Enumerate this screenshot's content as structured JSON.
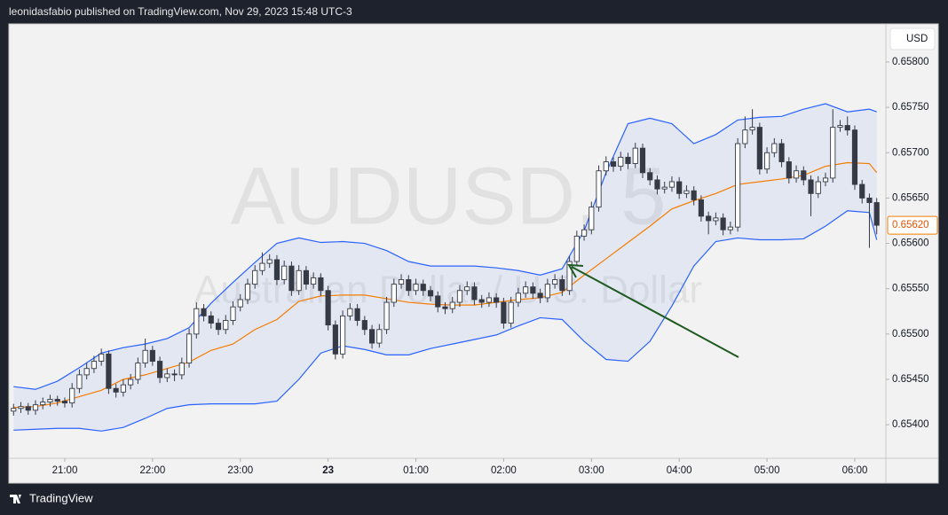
{
  "header": {
    "title": "leonidasfabio published on TradingView.com, Nov 29, 2023 15:48 UTC-3"
  },
  "footer": {
    "brand": "TradingView"
  },
  "chart_data": {
    "type": "candlestick",
    "watermark": "AUDUSD, 5",
    "subtitle": "Australian Dollar / U.S. Dollar",
    "currency": "USD",
    "last_price": {
      "value": 0.6562,
      "label": "0.65620"
    },
    "up_color": "#ffffff",
    "down_color": "#363a45",
    "grid": false,
    "xlim": [
      -0.64,
      119.25
    ],
    "xticks": [
      {
        "value": 7,
        "label": "21:00"
      },
      {
        "value": 19,
        "label": "22:00"
      },
      {
        "value": 31,
        "label": "23:00"
      },
      {
        "value": 43,
        "label": "23"
      },
      {
        "value": 55,
        "label": "01:00"
      },
      {
        "value": 67,
        "label": "02:00"
      },
      {
        "value": 79,
        "label": "03:00"
      },
      {
        "value": 91,
        "label": "04:00"
      },
      {
        "value": 103,
        "label": "05:00"
      },
      {
        "value": 115,
        "label": "06:00"
      }
    ],
    "ylim": [
      0.65363,
      0.65842
    ],
    "yticks": [
      {
        "value": 0.654,
        "label": "0.65400"
      },
      {
        "value": 0.6545,
        "label": "0.65450"
      },
      {
        "value": 0.655,
        "label": "0.65500"
      },
      {
        "value": 0.6555,
        "label": "0.65550"
      },
      {
        "value": 0.656,
        "label": "0.65600"
      },
      {
        "value": 0.6565,
        "label": "0.65650"
      },
      {
        "value": 0.657,
        "label": "0.65700"
      },
      {
        "value": 0.6575,
        "label": "0.65750"
      },
      {
        "value": 0.658,
        "label": "0.65800"
      }
    ],
    "open": [
      0.65415,
      0.65418,
      0.6542,
      0.65416,
      0.65422,
      0.65425,
      0.65428,
      0.65426,
      0.65424,
      0.6544,
      0.65455,
      0.65462,
      0.6547,
      0.65478,
      0.6544,
      0.65436,
      0.65444,
      0.6545,
      0.65468,
      0.65482,
      0.6547,
      0.65452,
      0.65456,
      0.65455,
      0.65468,
      0.655,
      0.65528,
      0.6552,
      0.65512,
      0.65505,
      0.65515,
      0.6553,
      0.65538,
      0.65555,
      0.6557,
      0.65578,
      0.65582,
      0.6556,
      0.65575,
      0.65548,
      0.6557,
      0.65555,
      0.65562,
      0.65548,
      0.6551,
      0.65478,
      0.6552,
      0.65528,
      0.65515,
      0.65505,
      0.6549,
      0.65505,
      0.65535,
      0.65555,
      0.6556,
      0.65548,
      0.65555,
      0.65548,
      0.65542,
      0.6553,
      0.65528,
      0.65535,
      0.65548,
      0.65552,
      0.65538,
      0.65535,
      0.6554,
      0.65535,
      0.65512,
      0.65535,
      0.65545,
      0.65552,
      0.65545,
      0.6554,
      0.65555,
      0.6556,
      0.65548,
      0.6558,
      0.65608,
      0.65615,
      0.6564,
      0.6568,
      0.6569,
      0.65685,
      0.65695,
      0.65688,
      0.65705,
      0.65678,
      0.6567,
      0.6566,
      0.65662,
      0.65668,
      0.65655,
      0.65658,
      0.65648,
      0.6563,
      0.65625,
      0.65628,
      0.65615,
      0.65618,
      0.6571,
      0.65725,
      0.65728,
      0.65682,
      0.657,
      0.6571,
      0.6569,
      0.65672,
      0.6568,
      0.6567,
      0.65655,
      0.65668,
      0.65672,
      0.65728,
      0.6573,
      0.65725,
      0.65665,
      0.6565,
      0.65645
    ],
    "high": [
      0.65423,
      0.65425,
      0.65424,
      0.65427,
      0.6543,
      0.65433,
      0.65432,
      0.6543,
      0.65446,
      0.65461,
      0.65468,
      0.65476,
      0.65484,
      0.65482,
      0.65445,
      0.6545,
      0.65456,
      0.65474,
      0.65495,
      0.65487,
      0.65475,
      0.65462,
      0.65461,
      0.65474,
      0.65506,
      0.65535,
      0.65533,
      0.65525,
      0.65517,
      0.65521,
      0.65536,
      0.65544,
      0.65561,
      0.65576,
      0.6559,
      0.65588,
      0.65587,
      0.65581,
      0.6558,
      0.65576,
      0.65575,
      0.65568,
      0.65567,
      0.65553,
      0.65515,
      0.65526,
      0.65534,
      0.65533,
      0.6552,
      0.6551,
      0.65511,
      0.65541,
      0.65561,
      0.65566,
      0.65565,
      0.65561,
      0.6556,
      0.65553,
      0.65547,
      0.65535,
      0.65541,
      0.65554,
      0.65558,
      0.65557,
      0.65543,
      0.65546,
      0.65545,
      0.6554,
      0.65541,
      0.65551,
      0.65558,
      0.65557,
      0.6555,
      0.65561,
      0.65566,
      0.65565,
      0.65586,
      0.65614,
      0.65621,
      0.65646,
      0.65686,
      0.65696,
      0.65695,
      0.65701,
      0.657,
      0.65711,
      0.6571,
      0.65683,
      0.65675,
      0.65668,
      0.65674,
      0.65673,
      0.65664,
      0.65663,
      0.65653,
      0.65635,
      0.65634,
      0.65633,
      0.65624,
      0.65716,
      0.6574,
      0.65748,
      0.65733,
      0.65706,
      0.65716,
      0.65715,
      0.65695,
      0.65686,
      0.65685,
      0.65675,
      0.65674,
      0.65678,
      0.65748,
      0.65736,
      0.6574,
      0.6573,
      0.6567,
      0.65655,
      0.6565
    ],
    "low": [
      0.6541,
      0.65413,
      0.65411,
      0.65411,
      0.65417,
      0.6542,
      0.65421,
      0.65419,
      0.65419,
      0.65435,
      0.6545,
      0.65457,
      0.65465,
      0.65434,
      0.6543,
      0.65431,
      0.65439,
      0.65445,
      0.65463,
      0.65465,
      0.65446,
      0.65447,
      0.65448,
      0.6545,
      0.65463,
      0.65495,
      0.65514,
      0.65506,
      0.65499,
      0.655,
      0.6551,
      0.65525,
      0.65533,
      0.6555,
      0.65565,
      0.65573,
      0.65554,
      0.65555,
      0.65542,
      0.65543,
      0.65549,
      0.6555,
      0.65542,
      0.65504,
      0.65472,
      0.65473,
      0.65515,
      0.65509,
      0.65499,
      0.65484,
      0.65485,
      0.655,
      0.6553,
      0.6555,
      0.65542,
      0.65543,
      0.65542,
      0.65536,
      0.65524,
      0.65522,
      0.65523,
      0.6553,
      0.65543,
      0.65532,
      0.65529,
      0.6553,
      0.65529,
      0.65506,
      0.65507,
      0.6553,
      0.6554,
      0.65539,
      0.65534,
      0.65535,
      0.6555,
      0.65542,
      0.65543,
      0.65575,
      0.65603,
      0.6561,
      0.65635,
      0.65675,
      0.65679,
      0.6568,
      0.65682,
      0.65683,
      0.65672,
      0.65664,
      0.65654,
      0.65655,
      0.65657,
      0.65649,
      0.6565,
      0.65642,
      0.65624,
      0.6561,
      0.6562,
      0.65609,
      0.6561,
      0.65613,
      0.65705,
      0.6572,
      0.65676,
      0.65677,
      0.65695,
      0.65684,
      0.65666,
      0.65667,
      0.65664,
      0.6563,
      0.6565,
      0.65663,
      0.65667,
      0.65723,
      0.65719,
      0.65659,
      0.65644,
      0.65595,
      0.6561
    ],
    "close": [
      0.65418,
      0.6542,
      0.65416,
      0.65422,
      0.65425,
      0.65428,
      0.65426,
      0.65424,
      0.6544,
      0.65455,
      0.65462,
      0.6547,
      0.65478,
      0.6544,
      0.65436,
      0.65444,
      0.6545,
      0.65468,
      0.65482,
      0.6547,
      0.65452,
      0.65456,
      0.65455,
      0.65468,
      0.655,
      0.65528,
      0.6552,
      0.65512,
      0.65505,
      0.65515,
      0.6553,
      0.65538,
      0.65555,
      0.6557,
      0.65578,
      0.65582,
      0.6556,
      0.65575,
      0.65548,
      0.6557,
      0.65555,
      0.65562,
      0.65548,
      0.6551,
      0.65478,
      0.6552,
      0.65528,
      0.65515,
      0.65505,
      0.6549,
      0.65505,
      0.65535,
      0.65555,
      0.6556,
      0.65548,
      0.65555,
      0.65548,
      0.65542,
      0.6553,
      0.65528,
      0.65535,
      0.65548,
      0.65552,
      0.65538,
      0.65535,
      0.6554,
      0.65535,
      0.65512,
      0.65535,
      0.65545,
      0.65552,
      0.65545,
      0.6554,
      0.65555,
      0.6556,
      0.65548,
      0.6558,
      0.65608,
      0.65615,
      0.6564,
      0.6568,
      0.6569,
      0.65685,
      0.65695,
      0.65688,
      0.65705,
      0.65678,
      0.6567,
      0.6566,
      0.65662,
      0.65668,
      0.65655,
      0.65658,
      0.65648,
      0.6563,
      0.65625,
      0.65628,
      0.65615,
      0.65618,
      0.6571,
      0.65725,
      0.65728,
      0.65682,
      0.657,
      0.6571,
      0.6569,
      0.65672,
      0.6568,
      0.6567,
      0.65655,
      0.65668,
      0.65672,
      0.65728,
      0.6573,
      0.65725,
      0.65665,
      0.6565,
      0.65645,
      0.6562
    ],
    "bands": {
      "fill": "rgba(41,98,255,0.07)",
      "x": [
        0,
        3,
        6,
        9,
        12,
        15,
        18,
        21,
        24,
        27,
        30,
        33,
        36,
        39,
        42,
        45,
        48,
        51,
        54,
        57,
        60,
        63,
        66,
        69,
        72,
        75,
        78,
        81,
        84,
        87,
        90,
        93,
        96,
        99,
        102,
        105,
        108,
        111,
        114,
        117,
        118
      ],
      "series": [
        {
          "color": "#2962ff",
          "values": [
            0.65442,
            0.65439,
            0.65448,
            0.65463,
            0.65479,
            0.65485,
            0.65489,
            0.65495,
            0.65507,
            0.65534,
            0.65557,
            0.65579,
            0.656,
            0.65606,
            0.65601,
            0.65602,
            0.656,
            0.65592,
            0.6558,
            0.65575,
            0.65575,
            0.65575,
            0.65573,
            0.6557,
            0.65565,
            0.65572,
            0.65614,
            0.65678,
            0.65732,
            0.65738,
            0.65732,
            0.6571,
            0.6572,
            0.65736,
            0.65739,
            0.6574,
            0.65748,
            0.65754,
            0.65745,
            0.65748,
            0.65745
          ]
        },
        {
          "color": "#f57c00",
          "values": [
            0.65419,
            0.6542,
            0.65424,
            0.65431,
            0.65438,
            0.6545,
            0.65455,
            0.65462,
            0.65469,
            0.65482,
            0.65489,
            0.65505,
            0.65516,
            0.65536,
            0.65542,
            0.65543,
            0.65543,
            0.65539,
            0.65535,
            0.65533,
            0.65532,
            0.65532,
            0.65535,
            0.65538,
            0.6554,
            0.65546,
            0.65565,
            0.65583,
            0.65601,
            0.65619,
            0.65638,
            0.65647,
            0.65655,
            0.65665,
            0.65668,
            0.65671,
            0.65675,
            0.65685,
            0.65689,
            0.65688,
            0.65678
          ]
        },
        {
          "color": "#2962ff",
          "values": [
            0.65394,
            0.65395,
            0.65396,
            0.65396,
            0.65393,
            0.65397,
            0.65407,
            0.65418,
            0.65422,
            0.65423,
            0.65423,
            0.65423,
            0.65426,
            0.6545,
            0.65479,
            0.65487,
            0.65483,
            0.65477,
            0.65477,
            0.65484,
            0.65489,
            0.65494,
            0.65499,
            0.65509,
            0.65518,
            0.65516,
            0.65492,
            0.65472,
            0.6547,
            0.65492,
            0.65531,
            0.65575,
            0.65602,
            0.65606,
            0.65604,
            0.65604,
            0.65605,
            0.65619,
            0.65636,
            0.65634,
            0.65604
          ]
        }
      ]
    }
  }
}
